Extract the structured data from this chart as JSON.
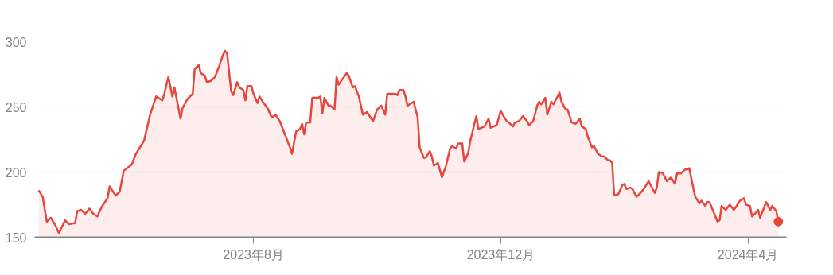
{
  "chart_data": {
    "type": "area",
    "grid": "y",
    "ylim": [
      150,
      300
    ],
    "yticks": [
      150,
      200,
      250,
      300
    ],
    "xlim": [
      "2023-04-15",
      "2024-04-20"
    ],
    "xticks": [
      {
        "value": "2023-08-01",
        "label": "2023年8月"
      },
      {
        "value": "2023-12-01",
        "label": "2023年12月"
      },
      {
        "value": "2024-04-01",
        "label": "2024年4月"
      }
    ],
    "series": [
      {
        "color": "#e8453c",
        "x": [
          "2023-04-17",
          "2023-04-19",
          "2023-04-21",
          "2023-04-23",
          "2023-04-25",
          "2023-04-27",
          "2023-04-30",
          "2023-05-02",
          "2023-05-05",
          "2023-05-06",
          "2023-05-08",
          "2023-05-10",
          "2023-05-12",
          "2023-05-14",
          "2023-05-16",
          "2023-05-18",
          "2023-05-21",
          "2023-05-22",
          "2023-05-25",
          "2023-05-27",
          "2023-05-29",
          "2023-06-02",
          "2023-06-04",
          "2023-06-08",
          "2023-06-11",
          "2023-06-14",
          "2023-06-17",
          "2023-06-18",
          "2023-06-20",
          "2023-06-22",
          "2023-06-23",
          "2023-06-24",
          "2023-06-26",
          "2023-06-27",
          "2023-06-29",
          "2023-06-30",
          "2023-07-02",
          "2023-07-03",
          "2023-07-05",
          "2023-07-06",
          "2023-07-08",
          "2023-07-09",
          "2023-07-11",
          "2023-07-13",
          "2023-07-15",
          "2023-07-17",
          "2023-07-18",
          "2023-07-19",
          "2023-07-21",
          "2023-07-22",
          "2023-07-24",
          "2023-07-25",
          "2023-07-27",
          "2023-07-28",
          "2023-07-29",
          "2023-07-31",
          "2023-08-01",
          "2023-08-03",
          "2023-08-04",
          "2023-08-06",
          "2023-08-08",
          "2023-08-10",
          "2023-08-12",
          "2023-08-14",
          "2023-08-19",
          "2023-08-20",
          "2023-08-22",
          "2023-08-24",
          "2023-08-25",
          "2023-08-26",
          "2023-08-27",
          "2023-08-29",
          "2023-08-30",
          "2023-09-02",
          "2023-09-03",
          "2023-09-04",
          "2023-09-05",
          "2023-09-07",
          "2023-09-08",
          "2023-09-10",
          "2023-09-11",
          "2023-09-12",
          "2023-09-16",
          "2023-09-17",
          "2023-09-19",
          "2023-09-20",
          "2023-09-22",
          "2023-09-24",
          "2023-09-26",
          "2023-09-29",
          "2023-10-01",
          "2023-10-03",
          "2023-10-05",
          "2023-10-06",
          "2023-10-08",
          "2023-10-10",
          "2023-10-11",
          "2023-10-12",
          "2023-10-14",
          "2023-10-15",
          "2023-10-16",
          "2023-10-19",
          "2023-10-21",
          "2023-10-22",
          "2023-10-24",
          "2023-10-25",
          "2023-10-27",
          "2023-10-28",
          "2023-10-29",
          "2023-10-31",
          "2023-11-02",
          "2023-11-04",
          "2023-11-06",
          "2023-11-07",
          "2023-11-09",
          "2023-11-10",
          "2023-11-12",
          "2023-11-13",
          "2023-11-15",
          "2023-11-16",
          "2023-11-18",
          "2023-11-19",
          "2023-11-20",
          "2023-11-23",
          "2023-11-25",
          "2023-11-26",
          "2023-11-29",
          "2023-12-01",
          "2023-12-02",
          "2023-12-04",
          "2023-12-05",
          "2023-12-07",
          "2023-12-08",
          "2023-12-10",
          "2023-12-12",
          "2023-12-14",
          "2023-12-15",
          "2023-12-17",
          "2023-12-19",
          "2023-12-20",
          "2023-12-21",
          "2023-12-23",
          "2023-12-24",
          "2023-12-26",
          "2023-12-27",
          "2023-12-30",
          "2023-12-31",
          "2024-01-02",
          "2024-01-03",
          "2024-01-05",
          "2024-01-07",
          "2024-01-09",
          "2024-01-10",
          "2024-01-12",
          "2024-01-13",
          "2024-01-15",
          "2024-01-16",
          "2024-01-18",
          "2024-01-20",
          "2024-01-21",
          "2024-01-23",
          "2024-01-24",
          "2024-01-25",
          "2024-01-26",
          "2024-01-28",
          "2024-01-30",
          "2024-01-31",
          "2024-02-01",
          "2024-02-03",
          "2024-02-04",
          "2024-02-06",
          "2024-02-08",
          "2024-02-10",
          "2024-02-12",
          "2024-02-15",
          "2024-02-16",
          "2024-02-17",
          "2024-02-19",
          "2024-02-21",
          "2024-02-23",
          "2024-02-25",
          "2024-02-26",
          "2024-02-28",
          "2024-03-01",
          "2024-03-02",
          "2024-03-03",
          "2024-03-05",
          "2024-03-06",
          "2024-03-08",
          "2024-03-09",
          "2024-03-11",
          "2024-03-12",
          "2024-03-13",
          "2024-03-17",
          "2024-03-18",
          "2024-03-19",
          "2024-03-21",
          "2024-03-23",
          "2024-03-25",
          "2024-03-26",
          "2024-03-28",
          "2024-03-30",
          "2024-03-31",
          "2024-04-02",
          "2024-04-03",
          "2024-04-05",
          "2024-04-06",
          "2024-04-07",
          "2024-04-09",
          "2024-04-10",
          "2024-04-12",
          "2024-04-13",
          "2024-04-15",
          "2024-04-16"
        ],
        "values": [
          186,
          181,
          162,
          165,
          160,
          153,
          163,
          160,
          161,
          170,
          171,
          168,
          172,
          168,
          166,
          173,
          180,
          189,
          182,
          185,
          201,
          206,
          214,
          224,
          244,
          258,
          255,
          260,
          273,
          258,
          265,
          257,
          241,
          249,
          255,
          257,
          260,
          279,
          282,
          276,
          274,
          269,
          270,
          273,
          281,
          290,
          293,
          291,
          262,
          259,
          269,
          265,
          263,
          255,
          266,
          266,
          260,
          253,
          258,
          253,
          249,
          242,
          244,
          239,
          219,
          214,
          231,
          233,
          237,
          229,
          238,
          238,
          257,
          257,
          258,
          245,
          257,
          251,
          251,
          248,
          273,
          267,
          276,
          274,
          265,
          266,
          258,
          244,
          246,
          239,
          248,
          251,
          244,
          260,
          260,
          260,
          259,
          263,
          263,
          258,
          251,
          254,
          242,
          219,
          211,
          211,
          216,
          212,
          205,
          207,
          196,
          205,
          218,
          220,
          218,
          222,
          222,
          208,
          215,
          224,
          237,
          243,
          233,
          235,
          241,
          234,
          236,
          247,
          244,
          239,
          238,
          235,
          238,
          239,
          243,
          239,
          236,
          239,
          251,
          254,
          252,
          257,
          244,
          254,
          252,
          261,
          254,
          248,
          248,
          238,
          237,
          241,
          235,
          233,
          227,
          219,
          220,
          214,
          212,
          212,
          209,
          209,
          207,
          182,
          183,
          190,
          191,
          187,
          188,
          187,
          181,
          184,
          188,
          193,
          184,
          188,
          200,
          199,
          193,
          196,
          191,
          199,
          199,
          202,
          202,
          203,
          188,
          181,
          176,
          178,
          174,
          177,
          177,
          162,
          163,
          174,
          171,
          175,
          171,
          173,
          178,
          180,
          175,
          174,
          166,
          169,
          171,
          165,
          173,
          177,
          171,
          174,
          170,
          162
        ]
      }
    ]
  }
}
